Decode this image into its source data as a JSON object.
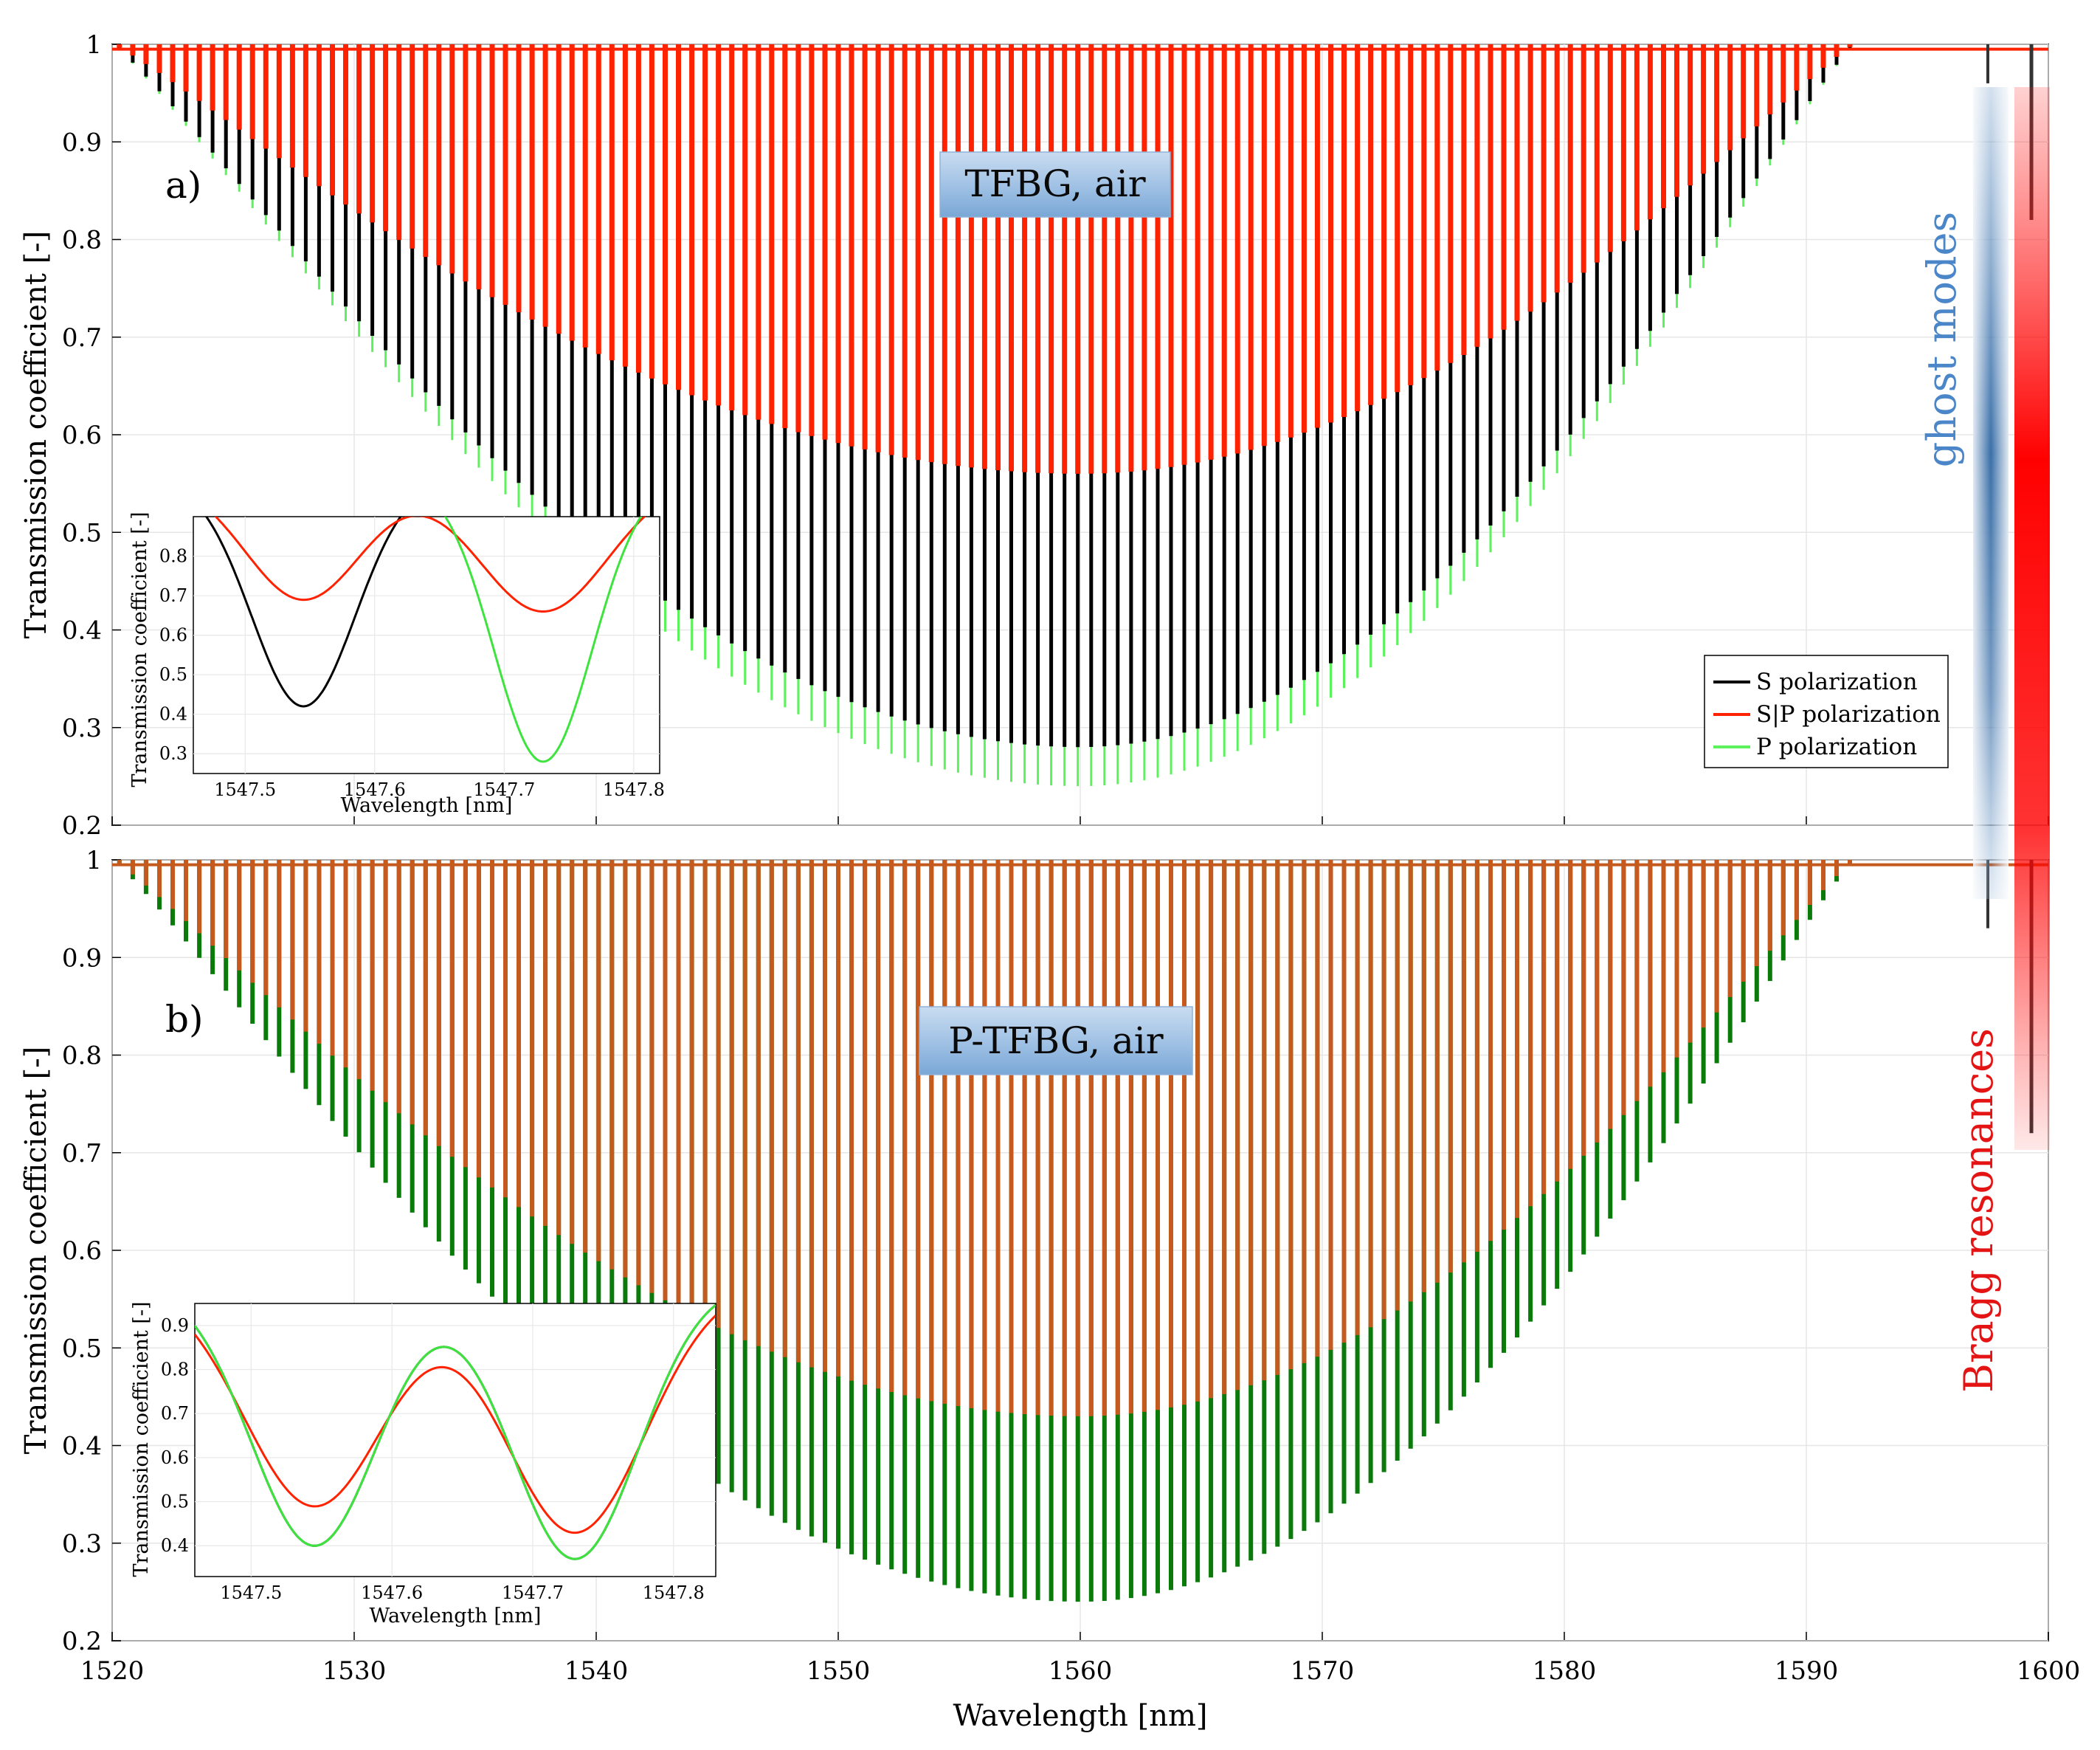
{
  "figure": {
    "xlabel": "Wavelength [nm]",
    "band_ghost_label": "ghost modes",
    "band_bragg_label": "Bragg resonances",
    "colors": {
      "s": "#000000",
      "sp": "#ff2200",
      "p": "#5cf25c",
      "mixed": "#c45a1e",
      "mixed_dark": "#0a7a0a",
      "ghost": "#4a7fb8",
      "bragg": "#ff1a1a"
    }
  },
  "chart_data": [
    {
      "id": "panel_a",
      "type": "line",
      "panel_label": "a)",
      "title": "TFBG, air",
      "ylabel": "Transmission coefficient [-]",
      "xlim": [
        1520,
        1600
      ],
      "ylim": [
        0.2,
        1
      ],
      "xticks": [
        "1520",
        "1530",
        "1540",
        "1550",
        "1560",
        "1570",
        "1580",
        "1590",
        "1600"
      ],
      "yticks": [
        "0.2",
        "0.3",
        "0.4",
        "0.5",
        "0.6",
        "0.7",
        "0.8",
        "0.9",
        "1"
      ],
      "legend": [
        "S polarization",
        "S|P polarization",
        "P polarization"
      ],
      "resonance_envelope": {
        "spacing_nm": 0.55,
        "center_nm": 1560,
        "min_transmission": {
          "S": 0.28,
          "S|P": 0.56,
          "P": 0.24
        },
        "ghost_mode": {
          "x": 1597.5,
          "y": 0.96
        },
        "bragg_resonance": {
          "x": 1599.3,
          "y": 0.82
        }
      },
      "inset": {
        "xlabel": "Wavelength [nm]",
        "ylabel": "Transmission coefficient [-]",
        "xlim": [
          1547.46,
          1547.82
        ],
        "ylim": [
          0.25,
          0.9
        ],
        "xticks": [
          "1547.5",
          "1547.6",
          "1547.7",
          "1547.8"
        ],
        "yticks": [
          "0.3",
          "0.4",
          "0.5",
          "0.6",
          "0.7",
          "0.8"
        ],
        "series": [
          {
            "name": "S polarization",
            "dips": [
              {
                "x": 1547.545,
                "y": 0.42,
                "w": 0.04
              }
            ]
          },
          {
            "name": "S|P polarization",
            "dips": [
              {
                "x": 1547.545,
                "y": 0.69,
                "w": 0.045
              },
              {
                "x": 1547.73,
                "y": 0.66,
                "w": 0.05
              }
            ]
          },
          {
            "name": "P polarization",
            "dips": [
              {
                "x": 1547.73,
                "y": 0.28,
                "w": 0.038
              }
            ]
          }
        ]
      }
    },
    {
      "id": "panel_b",
      "type": "line",
      "panel_label": "b)",
      "title": "P-TFBG, air",
      "ylabel": "Transmission coefficient [-]",
      "xlim": [
        1520,
        1600
      ],
      "ylim": [
        0.2,
        1
      ],
      "xticks": [
        "1520",
        "1530",
        "1540",
        "1550",
        "1560",
        "1570",
        "1580",
        "1590",
        "1600"
      ],
      "yticks": [
        "0.2",
        "0.3",
        "0.4",
        "0.5",
        "0.6",
        "0.7",
        "0.8",
        "0.9",
        "1"
      ],
      "resonance_envelope": {
        "spacing_nm": 0.55,
        "center_nm": 1560,
        "min_transmission": {
          "S": 0.24,
          "S|P": 0.43,
          "P": 0.24
        },
        "ghost_mode": {
          "x": 1597.5,
          "y": 0.93
        },
        "bragg_resonance": {
          "x": 1599.3,
          "y": 0.72
        }
      },
      "inset": {
        "xlabel": "Wavelength [nm]",
        "ylabel": "Transmission coefficient [-]",
        "xlim": [
          1547.46,
          1547.83
        ],
        "ylim": [
          0.33,
          0.95
        ],
        "xticks": [
          "1547.5",
          "1547.6",
          "1547.7",
          "1547.8"
        ],
        "yticks": [
          "0.4",
          "0.5",
          "0.6",
          "0.7",
          "0.8",
          "0.9"
        ],
        "series": [
          {
            "name": "S polarization",
            "dips": [
              {
                "x": 1547.545,
                "y": 0.4,
                "w": 0.045
              },
              {
                "x": 1547.73,
                "y": 0.37,
                "w": 0.045
              }
            ]
          },
          {
            "name": "S|P polarization",
            "dips": [
              {
                "x": 1547.545,
                "y": 0.49,
                "w": 0.05
              },
              {
                "x": 1547.73,
                "y": 0.43,
                "w": 0.05
              }
            ]
          },
          {
            "name": "P polarization",
            "dips": [
              {
                "x": 1547.545,
                "y": 0.4,
                "w": 0.045
              },
              {
                "x": 1547.73,
                "y": 0.37,
                "w": 0.045
              }
            ]
          }
        ]
      }
    }
  ]
}
